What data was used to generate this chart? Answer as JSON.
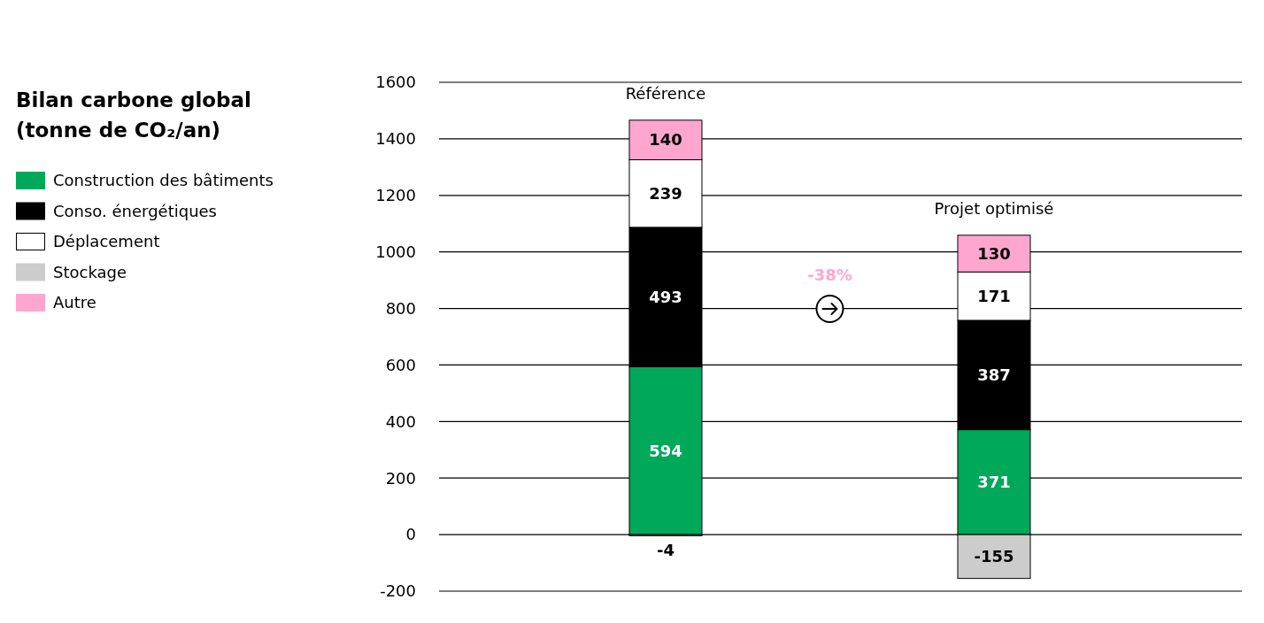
{
  "chart_data": {
    "type": "bar",
    "stacked": true,
    "title": "Bilan carbone global (tonne de CO₂/an)",
    "categories": [
      "Référence",
      "Projet optimisé"
    ],
    "series": [
      {
        "name": "Construction des bâtiments",
        "color": "#00a85a",
        "values": [
          594,
          371
        ]
      },
      {
        "name": "Conso. énergétiques",
        "color": "#000000",
        "values": [
          493,
          387
        ]
      },
      {
        "name": "Déplacement",
        "color": "#ffffff",
        "values": [
          239,
          171
        ]
      },
      {
        "name": "Stockage",
        "color": "#cccccc",
        "values": [
          -4,
          -155
        ]
      },
      {
        "name": "Autre",
        "color": "#ffa6cf",
        "values": [
          140,
          130
        ]
      }
    ],
    "ylim": [
      -200,
      1600
    ],
    "yticks": [
      -200,
      0,
      200,
      400,
      600,
      800,
      1000,
      1200,
      1400,
      1600
    ],
    "grid": "y",
    "legend": "left",
    "data_labels": true,
    "annotations": [
      "-38%"
    ]
  }
}
